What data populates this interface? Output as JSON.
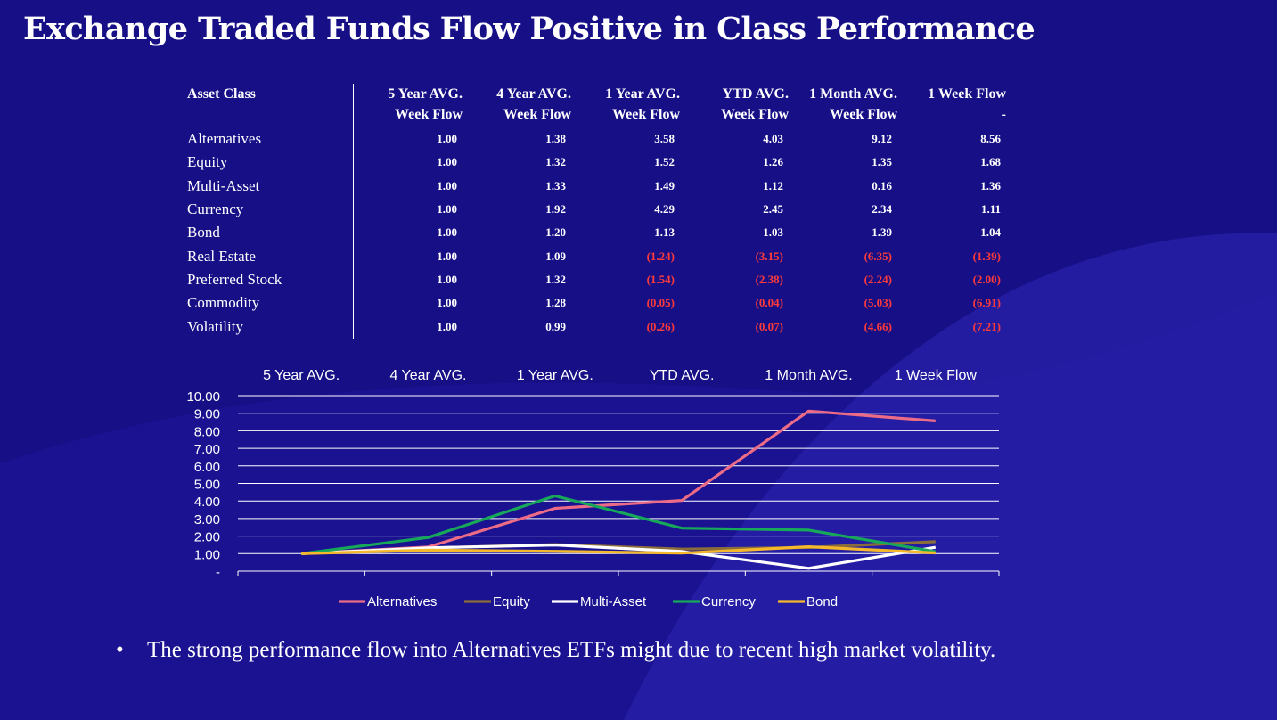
{
  "title": "Exchange Traded Funds Flow Positive in Class Performance",
  "colors": {
    "background": "#170f86",
    "negative": "#ff3b3b",
    "Alternatives": "#ec6b86",
    "Equity": "#8a6d3b",
    "Multi-Asset": "#ffffff",
    "Currency": "#18a85a",
    "Bond": "#f4b82a"
  },
  "table": {
    "header_asset": "Asset Class",
    "columns": [
      {
        "line1": "5 Year AVG.",
        "line2": "Week Flow"
      },
      {
        "line1": "4 Year AVG.",
        "line2": "Week Flow"
      },
      {
        "line1": "1 Year AVG.",
        "line2": "Week Flow"
      },
      {
        "line1": "YTD AVG.",
        "line2": "Week Flow"
      },
      {
        "line1": "1 Month AVG.",
        "line2": "Week Flow"
      },
      {
        "line1": "1 Week Flow",
        "line2": "-"
      }
    ],
    "rows": [
      {
        "name": "Alternatives",
        "values": [
          "1.00",
          "1.38",
          "3.58",
          "4.03",
          "9.12",
          "8.56"
        ]
      },
      {
        "name": "Equity",
        "values": [
          "1.00",
          "1.32",
          "1.52",
          "1.26",
          "1.35",
          "1.68"
        ]
      },
      {
        "name": "Multi-Asset",
        "values": [
          "1.00",
          "1.33",
          "1.49",
          "1.12",
          "0.16",
          "1.36"
        ]
      },
      {
        "name": "Currency",
        "values": [
          "1.00",
          "1.92",
          "4.29",
          "2.45",
          "2.34",
          "1.11"
        ]
      },
      {
        "name": "Bond",
        "values": [
          "1.00",
          "1.20",
          "1.13",
          "1.03",
          "1.39",
          "1.04"
        ]
      },
      {
        "name": "Real Estate",
        "values": [
          "1.00",
          "1.09",
          "(1.24)",
          "(3.15)",
          "(6.35)",
          "(1.39)"
        ]
      },
      {
        "name": "Preferred Stock",
        "values": [
          "1.00",
          "1.32",
          "(1.54)",
          "(2.38)",
          "(2.24)",
          "(2.00)"
        ]
      },
      {
        "name": "Commodity",
        "values": [
          "1.00",
          "1.28",
          "(0.05)",
          "(0.04)",
          "(5.03)",
          "(6.91)"
        ]
      },
      {
        "name": "Volatility",
        "values": [
          "1.00",
          "0.99",
          "(0.26)",
          "(0.07)",
          "(4.66)",
          "(7.21)"
        ]
      }
    ]
  },
  "chart_data": {
    "type": "line",
    "categories": [
      "5 Year AVG.",
      "4 Year AVG.",
      "1 Year AVG.",
      "YTD AVG.",
      "1 Month AVG.",
      "1 Week Flow"
    ],
    "ylim": [
      0,
      10
    ],
    "ytick_labels": [
      "-",
      "1.00",
      "2.00",
      "3.00",
      "4.00",
      "5.00",
      "6.00",
      "7.00",
      "8.00",
      "9.00",
      "10.00"
    ],
    "grid": true,
    "legend_position": "bottom",
    "series": [
      {
        "name": "Alternatives",
        "values": [
          1.0,
          1.38,
          3.58,
          4.03,
          9.12,
          8.56
        ]
      },
      {
        "name": "Equity",
        "values": [
          1.0,
          1.32,
          1.52,
          1.26,
          1.35,
          1.68
        ]
      },
      {
        "name": "Multi-Asset",
        "values": [
          1.0,
          1.33,
          1.49,
          1.12,
          0.16,
          1.36
        ]
      },
      {
        "name": "Currency",
        "values": [
          1.0,
          1.92,
          4.29,
          2.45,
          2.34,
          1.11
        ]
      },
      {
        "name": "Bond",
        "values": [
          1.0,
          1.2,
          1.13,
          1.03,
          1.39,
          1.04
        ]
      }
    ]
  },
  "bullet": {
    "marker": "•",
    "text": "The strong performance flow into Alternatives ETFs might due to recent high market volatility."
  }
}
